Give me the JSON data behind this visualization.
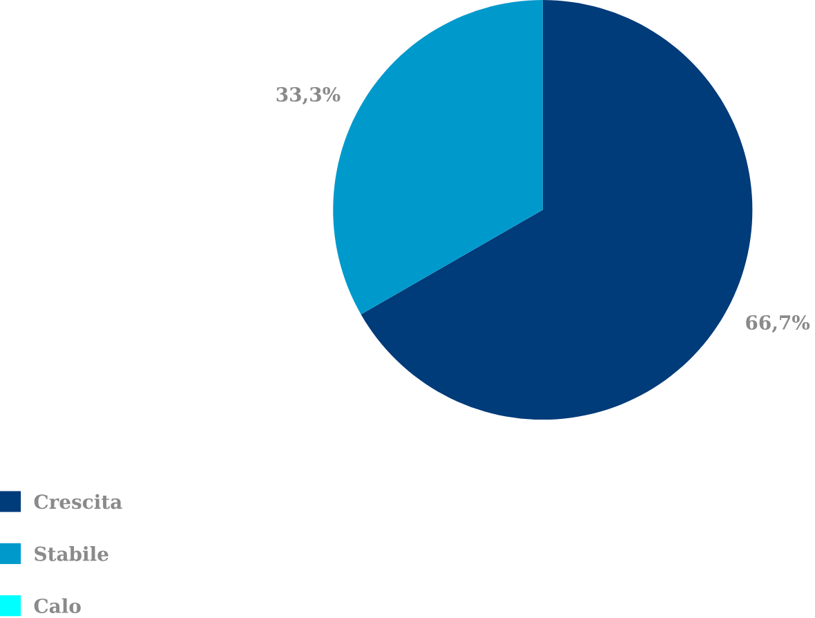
{
  "chart_data": {
    "type": "pie",
    "categories": [
      "Crescita",
      "Stabile",
      "Calo"
    ],
    "values": [
      66.7,
      33.3,
      0
    ],
    "colors": [
      "#003b7a",
      "#0099cc",
      "#00ffff"
    ],
    "value_labels": [
      "66,7%",
      "33,3%",
      null
    ],
    "legend": "bottom left"
  }
}
